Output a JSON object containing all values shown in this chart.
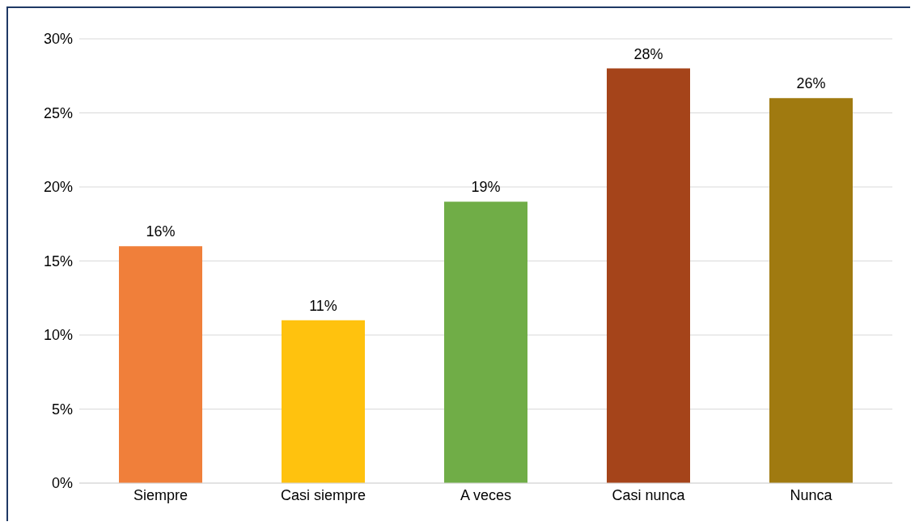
{
  "chart_data": {
    "type": "bar",
    "categories": [
      "Siempre",
      "Casi siempre",
      "A veces",
      "Casi nunca",
      "Nunca"
    ],
    "values": [
      16,
      11,
      19,
      28,
      26
    ],
    "colors": [
      "#f07f3a",
      "#ffc20e",
      "#70ad47",
      "#a5441a",
      "#a07a10"
    ],
    "value_labels": [
      "16%",
      "11%",
      "19%",
      "28%",
      "26%"
    ],
    "ylim": [
      0,
      30
    ],
    "yticks": [
      {
        "value": 0,
        "label": "0%"
      },
      {
        "value": 5,
        "label": "5%"
      },
      {
        "value": 10,
        "label": "10%"
      },
      {
        "value": 15,
        "label": "15%"
      },
      {
        "value": 20,
        "label": "20%"
      },
      {
        "value": 25,
        "label": "25%"
      },
      {
        "value": 30,
        "label": "30%"
      }
    ],
    "grid": "y"
  }
}
